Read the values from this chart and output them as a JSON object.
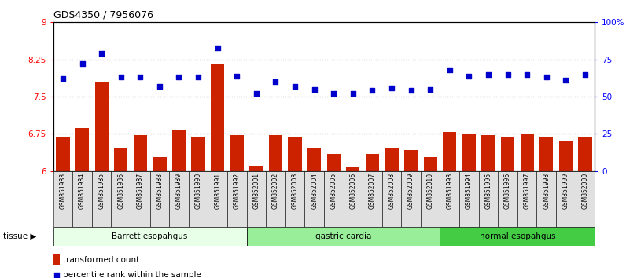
{
  "title": "GDS4350 / 7956076",
  "samples": [
    "GSM851983",
    "GSM851984",
    "GSM851985",
    "GSM851986",
    "GSM851987",
    "GSM851988",
    "GSM851989",
    "GSM851990",
    "GSM851991",
    "GSM851992",
    "GSM852001",
    "GSM852002",
    "GSM852003",
    "GSM852004",
    "GSM852005",
    "GSM852006",
    "GSM852007",
    "GSM852008",
    "GSM852009",
    "GSM852010",
    "GSM851993",
    "GSM851994",
    "GSM851995",
    "GSM851996",
    "GSM851997",
    "GSM851998",
    "GSM851999",
    "GSM852000"
  ],
  "bar_values": [
    6.7,
    6.87,
    7.8,
    6.45,
    6.72,
    6.28,
    6.83,
    6.7,
    8.17,
    6.73,
    6.09,
    6.73,
    6.67,
    6.45,
    6.35,
    6.08,
    6.35,
    6.47,
    6.43,
    6.28,
    6.78,
    6.75,
    6.73,
    6.68,
    6.76,
    6.7,
    6.62,
    6.7
  ],
  "dot_values": [
    62,
    72,
    79,
    63,
    63,
    57,
    63,
    63,
    83,
    64,
    52,
    60,
    57,
    55,
    52,
    52,
    54,
    56,
    54,
    55,
    68,
    64,
    65,
    65,
    65,
    63,
    61,
    65
  ],
  "groups": [
    {
      "label": "Barrett esopahgus",
      "start": 0,
      "end": 10,
      "color": "#e8ffe8"
    },
    {
      "label": "gastric cardia",
      "start": 10,
      "end": 20,
      "color": "#99ee99"
    },
    {
      "label": "normal esopahgus",
      "start": 20,
      "end": 28,
      "color": "#44cc44"
    }
  ],
  "ylim_left": [
    6,
    9
  ],
  "ylim_right": [
    0,
    100
  ],
  "yticks_left": [
    6,
    6.75,
    7.5,
    8.25,
    9
  ],
  "ytick_labels_left": [
    "6",
    "6.75",
    "7.5",
    "8.25",
    "9"
  ],
  "yticks_right": [
    0,
    25,
    50,
    75,
    100
  ],
  "ytick_labels_right": [
    "0",
    "25",
    "50",
    "75",
    "100%"
  ],
  "bar_color": "#cc2200",
  "dot_color": "#0000cc",
  "hline_values": [
    6.75,
    7.5,
    8.25
  ],
  "legend_bar_label": "transformed count",
  "legend_dot_label": "percentile rank within the sample",
  "background_color": "#ffffff"
}
